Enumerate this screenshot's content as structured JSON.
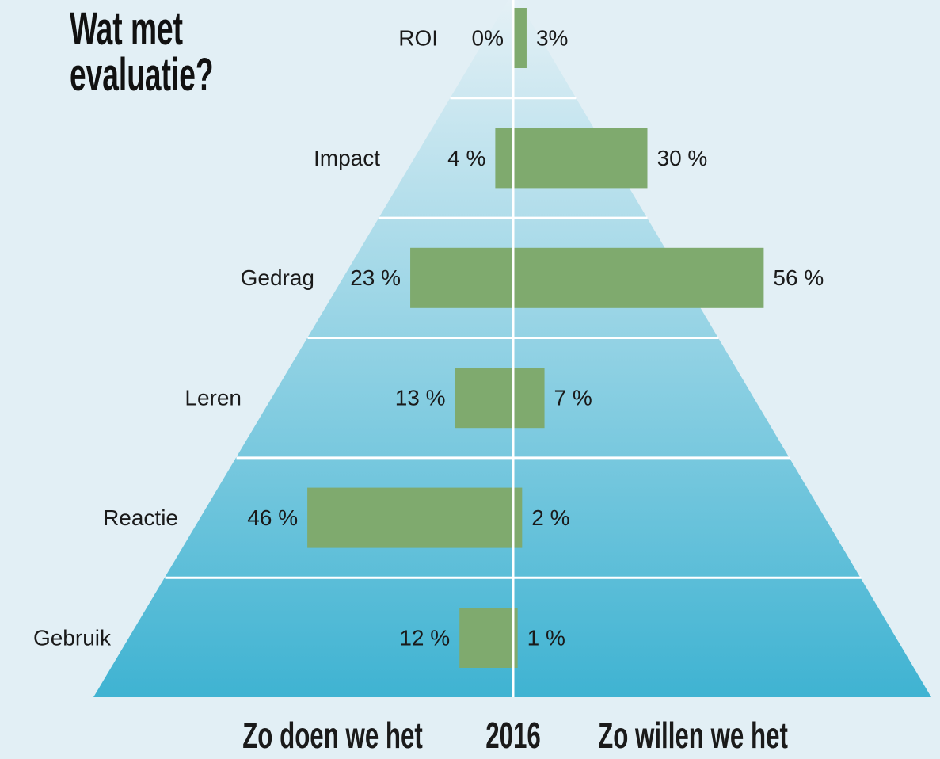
{
  "chart_data": {
    "type": "butterfly",
    "title": "Wat met evaluatie?",
    "center_label": "2016",
    "categories": [
      "ROI",
      "Impact",
      "Gedrag",
      "Leren",
      "Reactie",
      "Gebruik"
    ],
    "series": [
      {
        "name": "Zo doen we het",
        "color": "#7faa6e",
        "values": [
          0,
          4,
          23,
          13,
          46,
          12
        ],
        "value_labels": [
          "0%",
          "4 %",
          "23 %",
          "13 %",
          "46 %",
          "12 %"
        ]
      },
      {
        "name": "Zo willen we het",
        "color": "#7faa6e",
        "values": [
          3,
          30,
          56,
          7,
          2,
          1
        ],
        "value_labels": [
          "3%",
          "30 %",
          "56 %",
          "7 %",
          "2 %",
          "1 %"
        ]
      }
    ]
  }
}
